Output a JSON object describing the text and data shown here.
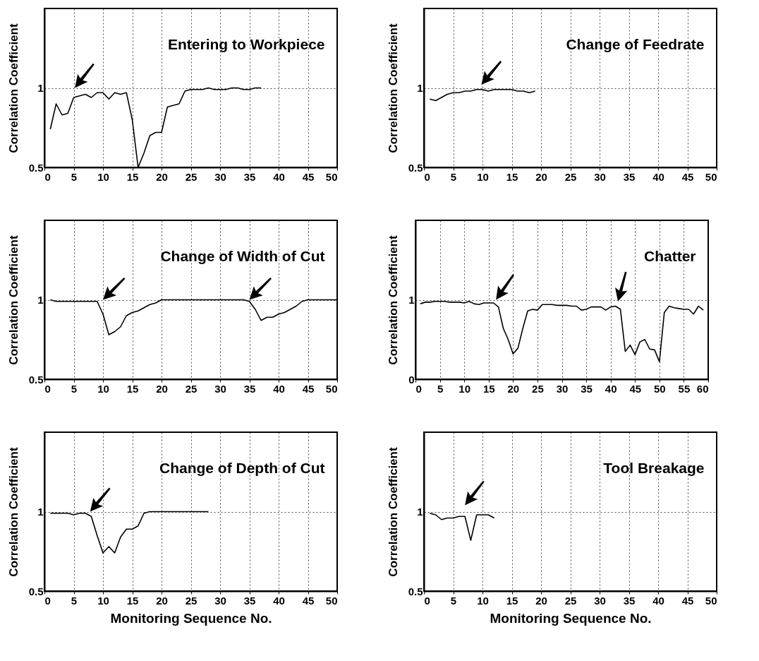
{
  "chart_data": [
    {
      "type": "line",
      "title": "Entering to Workpiece",
      "ylabel": "Correlation Coefficient",
      "color": "#000000",
      "grid": true,
      "xlim": [
        0,
        50
      ],
      "xticks": [
        0,
        5,
        10,
        15,
        20,
        25,
        30,
        35,
        40,
        45,
        50
      ],
      "ylim": [
        0.5,
        1.5
      ],
      "yticks": [
        0.5,
        1
      ],
      "x": [
        1,
        2,
        3,
        4,
        5,
        6,
        7,
        8,
        9,
        10,
        11,
        12,
        13,
        14,
        15,
        16,
        17,
        18,
        19,
        20,
        21,
        22,
        23,
        24,
        25,
        26,
        27,
        28,
        29,
        30,
        31,
        32,
        33,
        34,
        35,
        36,
        37
      ],
      "values": [
        0.74,
        0.9,
        0.83,
        0.84,
        0.94,
        0.95,
        0.96,
        0.94,
        0.97,
        0.97,
        0.93,
        0.97,
        0.96,
        0.97,
        0.8,
        0.5,
        0.59,
        0.7,
        0.72,
        0.72,
        0.88,
        0.89,
        0.9,
        0.98,
        0.99,
        0.99,
        0.99,
        1.0,
        0.99,
        0.99,
        0.99,
        1.0,
        1.0,
        0.99,
        0.99,
        1.0,
        1.0
      ]
    },
    {
      "type": "line",
      "title": "Change of Feedrate",
      "ylabel": "Correlation Coefficient",
      "color": "#000000",
      "grid": true,
      "xlim": [
        0,
        50
      ],
      "xticks": [
        0,
        5,
        10,
        15,
        20,
        25,
        30,
        35,
        40,
        45,
        50
      ],
      "ylim": [
        0.5,
        1.5
      ],
      "yticks": [
        0.5,
        1
      ],
      "x": [
        1,
        2,
        3,
        4,
        5,
        6,
        7,
        8,
        9,
        10,
        11,
        12,
        13,
        14,
        15,
        16,
        17,
        18,
        19
      ],
      "values": [
        0.93,
        0.92,
        0.94,
        0.96,
        0.97,
        0.97,
        0.98,
        0.98,
        0.99,
        0.99,
        0.98,
        0.99,
        0.99,
        0.99,
        0.99,
        0.98,
        0.98,
        0.97,
        0.98
      ]
    },
    {
      "type": "line",
      "title": "Change of Width of Cut",
      "ylabel": "Correlation Coefficient",
      "color": "#000000",
      "grid": true,
      "xlim": [
        0,
        50
      ],
      "xticks": [
        0,
        5,
        10,
        15,
        20,
        25,
        30,
        35,
        40,
        45,
        50
      ],
      "ylim": [
        0.5,
        1.5
      ],
      "yticks": [
        0.5,
        1
      ],
      "x": [
        1,
        2,
        3,
        4,
        5,
        6,
        7,
        8,
        9,
        10,
        11,
        12,
        13,
        14,
        15,
        16,
        17,
        18,
        19,
        20,
        21,
        22,
        23,
        24,
        25,
        26,
        27,
        28,
        29,
        30,
        31,
        32,
        33,
        34,
        35,
        36,
        37,
        38,
        39,
        40,
        41,
        42,
        43,
        44,
        45,
        46,
        47,
        48,
        49,
        50
      ],
      "values": [
        1.0,
        0.99,
        0.99,
        0.99,
        0.99,
        0.99,
        0.99,
        0.99,
        0.99,
        0.91,
        0.78,
        0.8,
        0.83,
        0.9,
        0.92,
        0.93,
        0.95,
        0.97,
        0.98,
        1.0,
        1.0,
        1.0,
        1.0,
        1.0,
        1.0,
        1.0,
        1.0,
        1.0,
        1.0,
        1.0,
        1.0,
        1.0,
        1.0,
        1.0,
        0.99,
        0.94,
        0.87,
        0.89,
        0.89,
        0.91,
        0.92,
        0.94,
        0.96,
        0.99,
        1.0,
        1.0,
        1.0,
        1.0,
        1.0,
        1.0
      ]
    },
    {
      "type": "line",
      "title": "Chatter",
      "ylabel": "Correlation Coefficient",
      "color": "#000000",
      "grid": true,
      "xlim": [
        0,
        60
      ],
      "xticks": [
        0,
        5,
        10,
        15,
        20,
        25,
        30,
        35,
        40,
        45,
        50,
        55,
        60
      ],
      "ylim": [
        0,
        2
      ],
      "yticks": [
        0,
        1
      ],
      "x": [
        1,
        2,
        3,
        4,
        5,
        6,
        7,
        8,
        9,
        10,
        11,
        12,
        13,
        14,
        15,
        16,
        17,
        18,
        19,
        20,
        21,
        22,
        23,
        24,
        25,
        26,
        27,
        28,
        29,
        30,
        31,
        32,
        33,
        34,
        35,
        36,
        37,
        38,
        39,
        40,
        41,
        42,
        43,
        44,
        45,
        46,
        47,
        48,
        49,
        50,
        51,
        52,
        53,
        54,
        55,
        56,
        57,
        58,
        59
      ],
      "values": [
        0.95,
        0.97,
        0.97,
        0.98,
        0.98,
        0.98,
        0.97,
        0.97,
        0.97,
        0.96,
        0.98,
        0.95,
        0.94,
        0.96,
        0.96,
        0.96,
        0.91,
        0.64,
        0.5,
        0.32,
        0.39,
        0.64,
        0.86,
        0.88,
        0.87,
        0.94,
        0.94,
        0.94,
        0.93,
        0.93,
        0.93,
        0.92,
        0.92,
        0.87,
        0.88,
        0.91,
        0.91,
        0.91,
        0.87,
        0.91,
        0.92,
        0.88,
        0.35,
        0.43,
        0.31,
        0.47,
        0.5,
        0.38,
        0.37,
        0.22,
        0.84,
        0.92,
        0.9,
        0.89,
        0.88,
        0.88,
        0.82,
        0.92,
        0.87
      ]
    },
    {
      "type": "line",
      "title": "Change of Depth of Cut",
      "xlabel": "Monitoring Sequence No.",
      "ylabel": "Correlation Coefficient",
      "color": "#000000",
      "grid": true,
      "xlim": [
        0,
        50
      ],
      "xticks": [
        0,
        5,
        10,
        15,
        20,
        25,
        30,
        35,
        40,
        45,
        50
      ],
      "ylim": [
        0.5,
        1.5
      ],
      "yticks": [
        0.5,
        1
      ],
      "x": [
        1,
        2,
        3,
        4,
        5,
        6,
        7,
        8,
        9,
        10,
        11,
        12,
        13,
        14,
        15,
        16,
        17,
        18,
        19,
        20,
        21,
        22,
        23,
        24,
        25,
        26,
        27,
        28
      ],
      "values": [
        0.99,
        0.99,
        0.99,
        0.99,
        0.98,
        0.99,
        0.99,
        0.97,
        0.85,
        0.74,
        0.78,
        0.74,
        0.84,
        0.89,
        0.89,
        0.91,
        0.99,
        1.0,
        1.0,
        1.0,
        1.0,
        1.0,
        1.0,
        1.0,
        1.0,
        1.0,
        1.0,
        1.0
      ]
    },
    {
      "type": "line",
      "title": "Tool Breakage",
      "xlabel": "Monitoring Sequence No.",
      "ylabel": "Correlation Coefficient",
      "color": "#000000",
      "grid": true,
      "xlim": [
        0,
        50
      ],
      "xticks": [
        0,
        5,
        10,
        15,
        20,
        25,
        30,
        35,
        40,
        45,
        50
      ],
      "ylim": [
        0.5,
        1.5
      ],
      "yticks": [
        0.5,
        1
      ],
      "x": [
        1,
        2,
        3,
        4,
        5,
        6,
        7,
        8,
        9,
        10,
        11,
        12
      ],
      "values": [
        0.99,
        0.98,
        0.95,
        0.96,
        0.96,
        0.97,
        0.97,
        0.82,
        0.98,
        0.98,
        0.98,
        0.96
      ]
    }
  ]
}
